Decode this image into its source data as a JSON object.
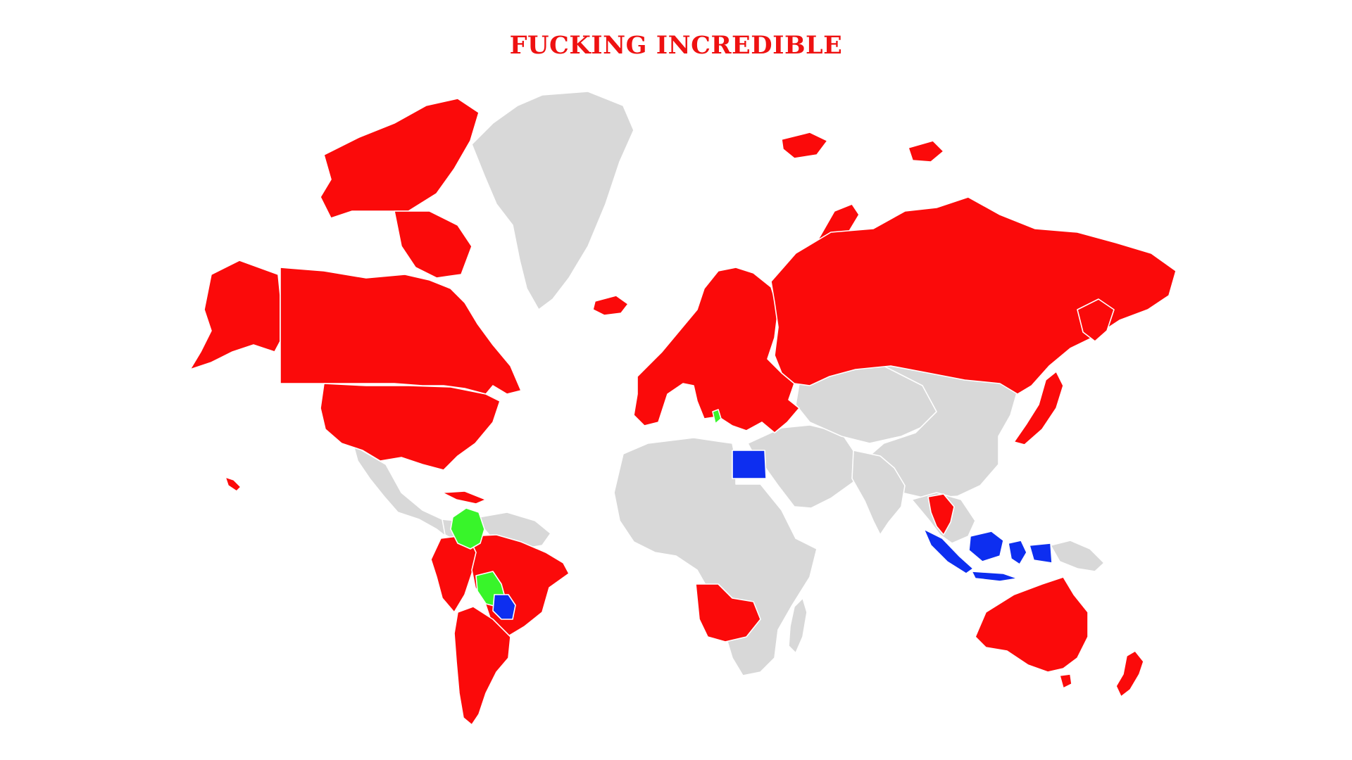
{
  "title": "FUCKING INCREDIBLE",
  "colors": {
    "title": "#ee1111",
    "red": "#fb0a0a",
    "green": "#38f52a",
    "blue": "#0d2ef0",
    "none": "#d8d8d8"
  },
  "categories": {
    "red": [
      "canada",
      "alaska",
      "united-states",
      "europe",
      "russia",
      "japan",
      "thailand",
      "south-africa",
      "peru",
      "brazil",
      "chile",
      "argentina",
      "australia",
      "new-zealand",
      "iceland",
      "svalbard",
      "novaya-zemlya",
      "franz-josef-land",
      "canadian-arctic-islands",
      "hawaii",
      "cuba"
    ],
    "green": [
      "colombia",
      "bolivia",
      "albania"
    ],
    "blue": [
      "egypt",
      "indonesia",
      "paraguay"
    ],
    "none": [
      "greenland",
      "mexico",
      "central-america",
      "venezuela",
      "africa",
      "middle-east",
      "central-asia",
      "china",
      "india",
      "mongolia",
      "southeast-asia",
      "papua",
      "madagascar"
    ]
  }
}
